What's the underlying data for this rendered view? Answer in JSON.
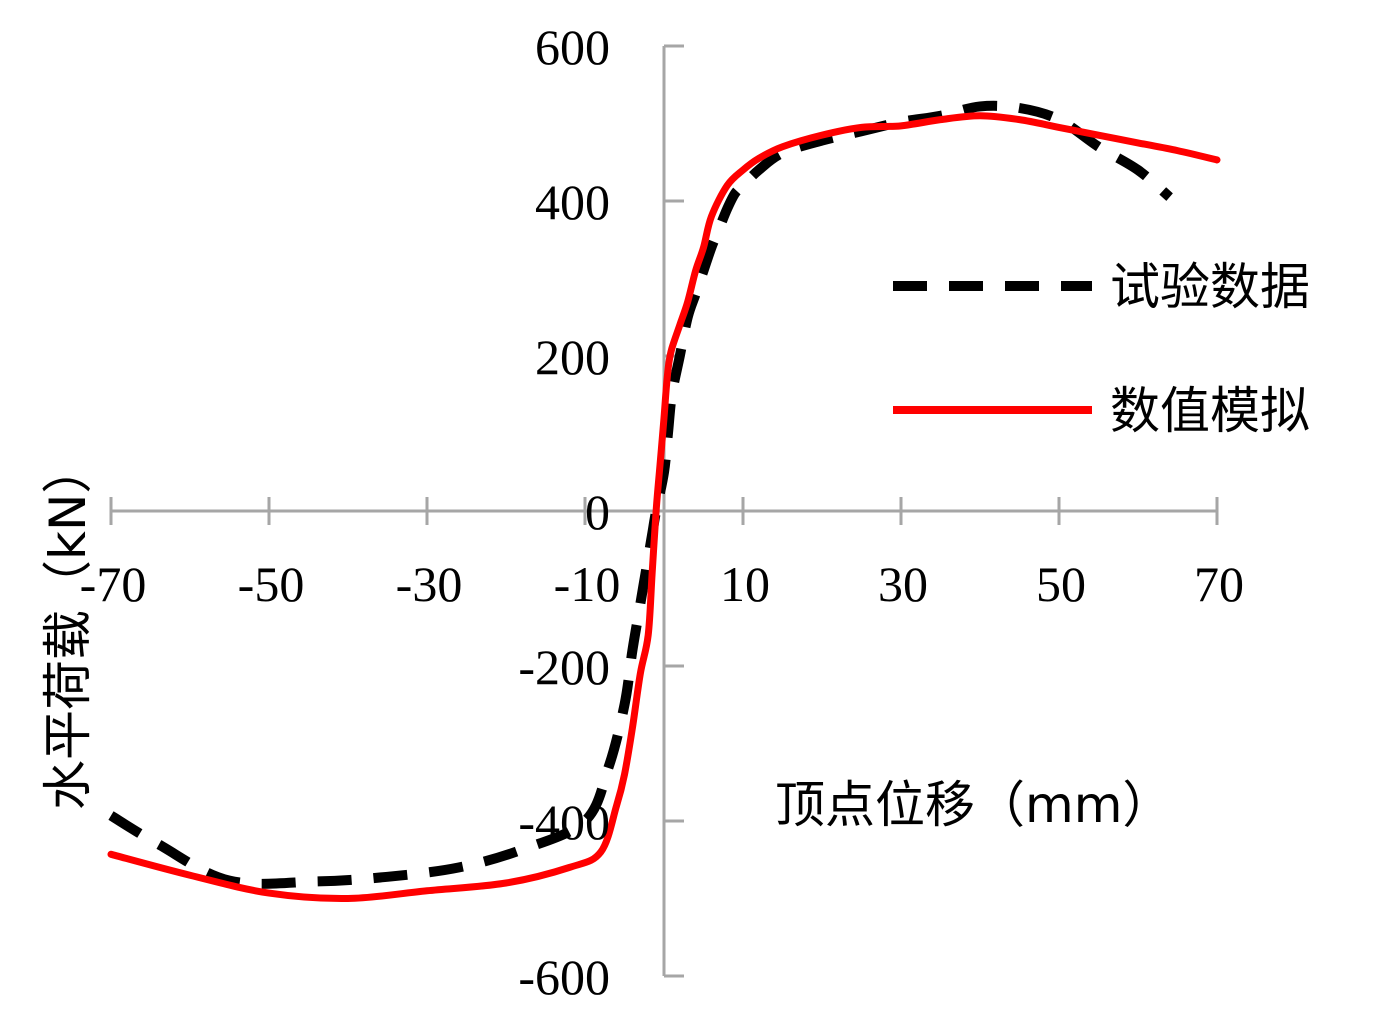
{
  "chart_data": {
    "type": "line",
    "xlabel": "顶点位移（mm）",
    "ylabel": "水平荷载（kN）",
    "xlim": [
      -70,
      70
    ],
    "ylim": [
      -600,
      600
    ],
    "xticks": [
      "-70",
      "-50",
      "-30",
      "-10",
      "10",
      "30",
      "50",
      "70"
    ],
    "yticks": [
      "600",
      "400",
      "200",
      "0",
      "-200",
      "-400",
      "-600"
    ],
    "legend_position": "right",
    "grid": false,
    "series": [
      {
        "name": "试验数据",
        "color": "#000000",
        "style": "dashed",
        "x": [
          -70,
          -64,
          -55,
          -44,
          -35,
          -26,
          -18,
          -10,
          -7,
          -5,
          -4,
          -3,
          -2,
          -1.5,
          -1,
          0,
          0.5,
          1,
          2,
          3,
          4,
          5,
          6,
          7,
          8,
          9,
          10,
          12,
          15,
          20,
          25,
          30,
          35,
          40,
          45,
          50,
          55,
          60,
          64
        ],
        "y": [
          -393,
          -430,
          -477,
          -478,
          -472,
          -460,
          -437,
          -400,
          -330,
          -250,
          -180,
          -120,
          -60,
          -30,
          0,
          50,
          100,
          150,
          200,
          250,
          280,
          310,
          340,
          365,
          390,
          410,
          420,
          440,
          462,
          478,
          490,
          502,
          510,
          522,
          520,
          505,
          470,
          440,
          405
        ]
      },
      {
        "name": "数值模拟",
        "color": "#ff0000",
        "style": "solid",
        "x": [
          -70,
          -60,
          -50,
          -40,
          -30,
          -20,
          -12,
          -8,
          -6,
          -5,
          -4,
          -3,
          -2,
          -1.5,
          -1,
          -0.5,
          0,
          0.3,
          0.6,
          1,
          2,
          3,
          4,
          5,
          6,
          8,
          10,
          12,
          15,
          20,
          25,
          30,
          35,
          40,
          45,
          50,
          55,
          60,
          65,
          70
        ],
        "y": [
          -443,
          -470,
          -493,
          -500,
          -490,
          -480,
          -460,
          -440,
          -380,
          -340,
          -280,
          -210,
          -160,
          -80,
          0,
          60,
          120,
          160,
          190,
          210,
          240,
          270,
          310,
          340,
          380,
          420,
          440,
          455,
          470,
          485,
          495,
          497,
          505,
          510,
          505,
          495,
          485,
          475,
          465,
          453
        ]
      }
    ]
  }
}
